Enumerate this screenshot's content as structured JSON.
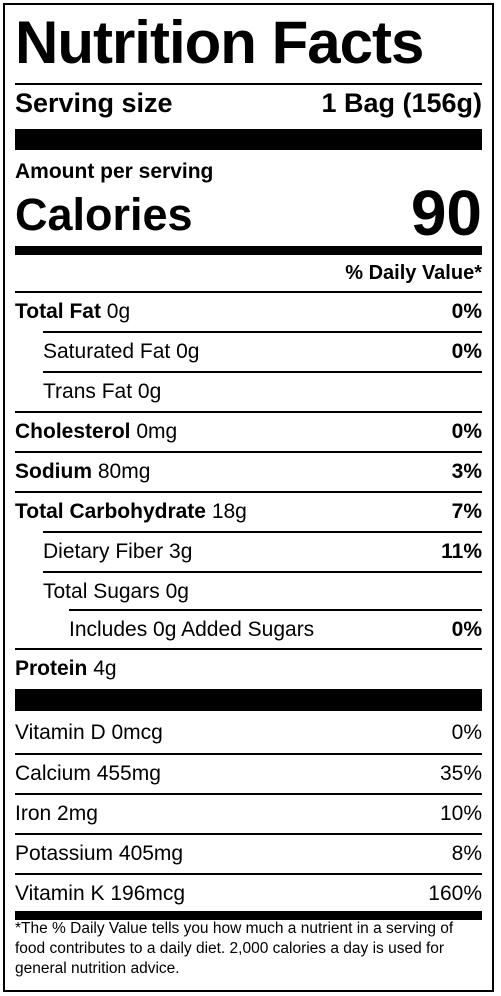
{
  "title": "Nutrition Facts",
  "serving": {
    "label": "Serving size",
    "value": "1 Bag (156g)"
  },
  "amount_per_serving": "Amount per serving",
  "calories": {
    "label": "Calories",
    "value": "90"
  },
  "daily_value_header": "% Daily Value*",
  "nutrients": [
    {
      "name": "Total Fat",
      "amount": "0g",
      "dv": "0%"
    },
    {
      "name": "Saturated Fat",
      "amount": "0g",
      "dv": "0%"
    },
    {
      "name": "Trans Fat",
      "amount": "0g",
      "dv": ""
    },
    {
      "name": "Cholesterol",
      "amount": "0mg",
      "dv": "0%"
    },
    {
      "name": "Sodium",
      "amount": "80mg",
      "dv": "3%"
    },
    {
      "name": "Total Carbohydrate",
      "amount": "18g",
      "dv": "7%"
    },
    {
      "name": "Dietary Fiber",
      "amount": "3g",
      "dv": "11%"
    },
    {
      "name": "Total Sugars",
      "amount": "0g",
      "dv": ""
    },
    {
      "name": "Includes 0g Added Sugars",
      "amount": "",
      "dv": "0%"
    },
    {
      "name": "Protein",
      "amount": "4g",
      "dv": ""
    }
  ],
  "vitamins": [
    {
      "name": "Vitamin D",
      "amount": "0mcg",
      "dv": "0%"
    },
    {
      "name": "Calcium",
      "amount": "455mg",
      "dv": "35%"
    },
    {
      "name": "Iron",
      "amount": "2mg",
      "dv": "10%"
    },
    {
      "name": "Potassium",
      "amount": "405mg",
      "dv": "8%"
    },
    {
      "name": "Vitamin K",
      "amount": "196mcg",
      "dv": "160%"
    }
  ],
  "footnote": "*The % Daily Value tells you how much a nutrient in a serving of food contributes to a daily diet. 2,000 calories a day is used for general nutrition advice."
}
